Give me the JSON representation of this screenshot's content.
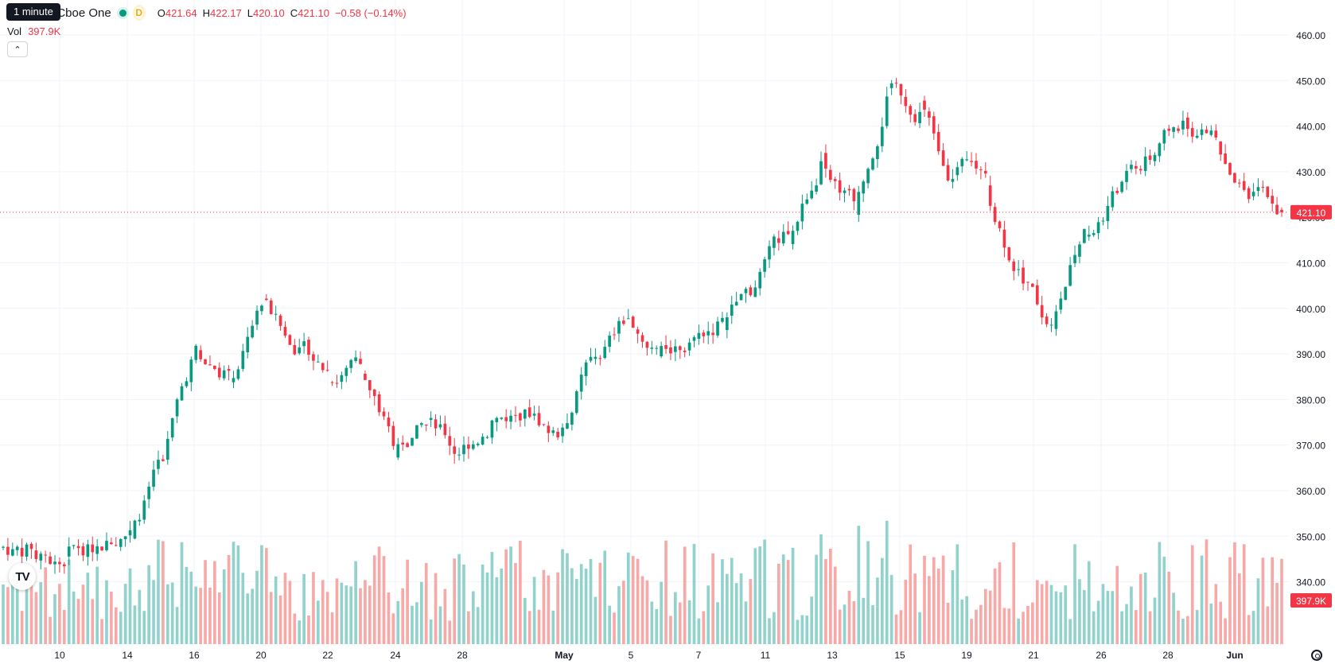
{
  "legend": {
    "title": "nc. · 1h · Cboe One",
    "interval_tooltip": "1 minute",
    "d_badge": "D",
    "open_label": "O",
    "open": "421.64",
    "high_label": "H",
    "high": "422.17",
    "low_label": "L",
    "low": "420.10",
    "close_label": "C",
    "close": "421.10",
    "change": "−0.58 (−0.14%)"
  },
  "volume_legend": {
    "label": "Vol",
    "value": "397.9K"
  },
  "icons": {
    "collapse": "chevron-up-icon",
    "logo": "tradingview-logo",
    "settings": "settings-icon"
  },
  "logo_text": "TV",
  "colors": {
    "up": "#089981",
    "down": "#f23645",
    "up_volume": "#92d2cc",
    "down_volume": "#f7a9a7",
    "grid": "#f0f3fa",
    "axis_text": "#131722"
  },
  "chart_data": {
    "type": "candlestick",
    "timeframe": "1h",
    "y_axis": {
      "range": [
        330,
        465
      ],
      "ticks": [
        340,
        350,
        360,
        370,
        380,
        390,
        400,
        410,
        420,
        430,
        440,
        450,
        460
      ],
      "tick_labels": [
        "340.00",
        "350.00",
        "360.00",
        "370.00",
        "380.00",
        "390.00",
        "400.00",
        "410.00",
        "420.00",
        "430.00",
        "440.00",
        "450.00",
        "460.00"
      ]
    },
    "last_price": {
      "value": 421.1,
      "label": "421.10"
    },
    "last_volume_label": "397.9K",
    "x_ticks": [
      "10",
      "14",
      "16",
      "20",
      "22",
      "24",
      "28",
      "May",
      "5",
      "7",
      "11",
      "13",
      "15",
      "19",
      "21",
      "26",
      "28",
      "Jun"
    ],
    "grid": true,
    "session_closes": [
      347.2,
      343.4,
      347.8,
      351.3,
      366.5,
      391.8,
      386.3,
      400.6,
      389.9,
      386.3,
      387.8,
      369.8,
      374.3,
      367.9,
      375.4,
      377.8,
      371.7,
      389.3,
      396.6,
      391.3,
      392.5,
      397.9,
      404.6,
      416.3,
      432.3,
      423.5,
      446.5,
      443.1,
      428.4,
      429.6,
      408.6,
      396.4,
      417.4,
      425.3,
      432.6,
      441.2,
      437.5,
      424.0,
      421.1
    ],
    "volume_range": [
      0,
      34000000
    ],
    "legend": "none"
  }
}
